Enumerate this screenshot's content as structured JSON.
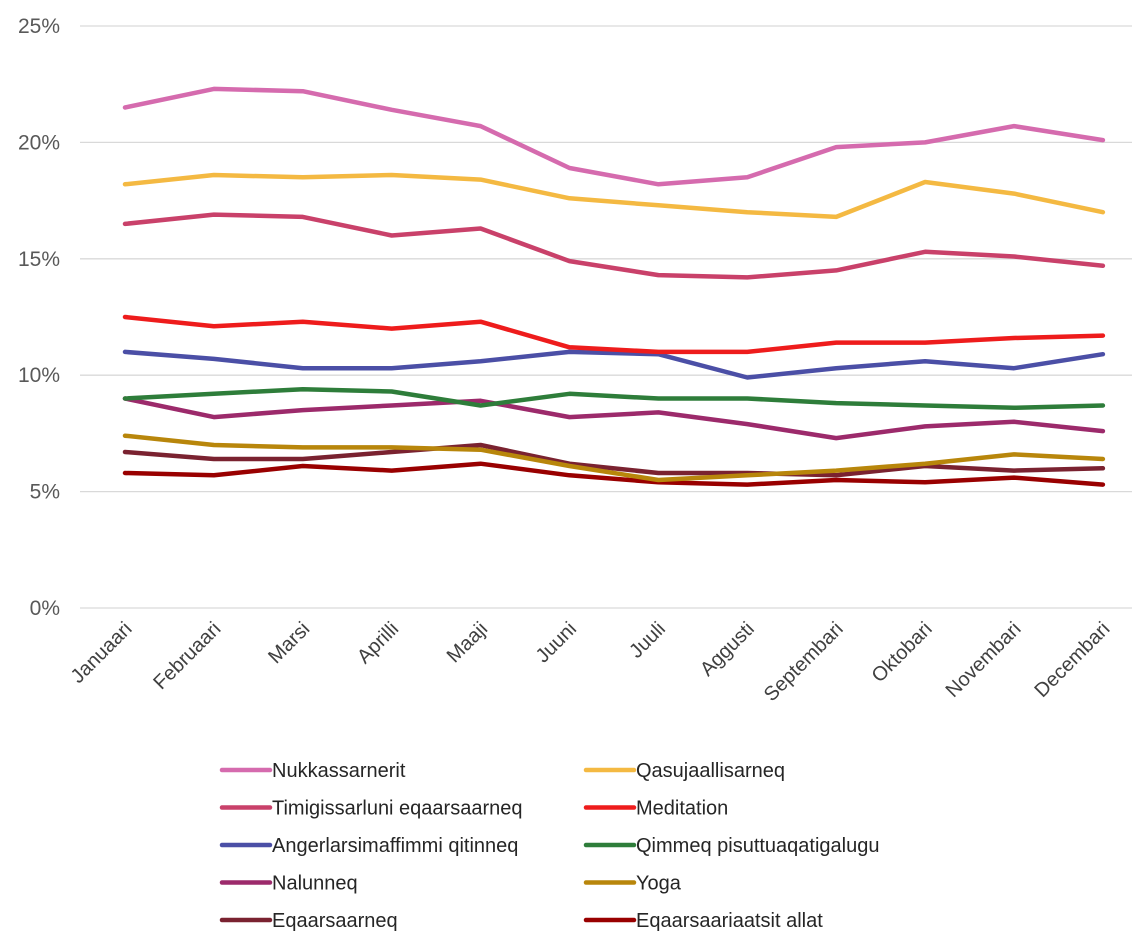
{
  "chart_data": {
    "type": "line",
    "title": "",
    "xlabel": "",
    "ylabel": "",
    "ylim": [
      0,
      25
    ],
    "yticks": [
      "0%",
      "5%",
      "10%",
      "15%",
      "20%",
      "25%"
    ],
    "ytick_values": [
      0,
      5,
      10,
      15,
      20,
      25
    ],
    "grid": true,
    "legend_position": "bottom",
    "categories": [
      "Januaari",
      "Februaari",
      "Marsi",
      "Aprilli",
      "Maaji",
      "Juuni",
      "Juuli",
      "Aggusti",
      "Septembari",
      "Oktobari",
      "Novembari",
      "Decembari"
    ],
    "series": [
      {
        "name": "Nukkassarnerit",
        "color": "#D56BAE",
        "values": [
          21.5,
          22.3,
          22.2,
          21.4,
          20.7,
          18.9,
          18.2,
          18.5,
          19.8,
          20.0,
          20.7,
          20.1
        ]
      },
      {
        "name": "Qasujaallisarneq",
        "color": "#F4B942",
        "values": [
          18.2,
          18.6,
          18.5,
          18.6,
          18.4,
          17.6,
          17.3,
          17.0,
          16.8,
          18.3,
          17.8,
          17.0
        ]
      },
      {
        "name": "Timigissarluni eqaarsaarneq",
        "color": "#C9416A",
        "values": [
          16.5,
          16.9,
          16.8,
          16.0,
          16.3,
          14.9,
          14.3,
          14.2,
          14.5,
          15.3,
          15.1,
          14.7
        ]
      },
      {
        "name": "Meditation",
        "color": "#EE1C1C",
        "values": [
          12.5,
          12.1,
          12.3,
          12.0,
          12.3,
          11.2,
          11.0,
          11.0,
          11.4,
          11.4,
          11.6,
          11.7
        ]
      },
      {
        "name": "Angerlarsimaffimmi qitinneq",
        "color": "#4B4FA6",
        "values": [
          11.0,
          10.7,
          10.3,
          10.3,
          10.6,
          11.0,
          10.9,
          9.9,
          10.3,
          10.6,
          10.3,
          10.9
        ]
      },
      {
        "name": "Qimmeq pisuttuaqatigalugu",
        "color": "#2E7D3A",
        "values": [
          9.0,
          9.2,
          9.4,
          9.3,
          8.7,
          9.2,
          9.0,
          9.0,
          8.8,
          8.7,
          8.6,
          8.7
        ]
      },
      {
        "name": "Nalunneq",
        "color": "#9C2A6B",
        "values": [
          9.0,
          8.2,
          8.5,
          8.7,
          8.9,
          8.2,
          8.4,
          7.9,
          7.3,
          7.8,
          8.0,
          7.6
        ]
      },
      {
        "name": "Yoga",
        "color": "#B8860B",
        "values": [
          7.4,
          7.0,
          6.9,
          6.9,
          6.8,
          6.1,
          5.5,
          5.7,
          5.9,
          6.2,
          6.6,
          6.4
        ]
      },
      {
        "name": "Eqaarsaarneq",
        "color": "#7A2230",
        "values": [
          6.7,
          6.4,
          6.4,
          6.7,
          7.0,
          6.2,
          5.8,
          5.8,
          5.7,
          6.1,
          5.9,
          6.0
        ]
      },
      {
        "name": "Eqaarsaariaatsit allat",
        "color": "#990000",
        "values": [
          5.8,
          5.7,
          6.1,
          5.9,
          6.2,
          5.7,
          5.4,
          5.3,
          5.5,
          5.4,
          5.6,
          5.3
        ]
      }
    ]
  }
}
